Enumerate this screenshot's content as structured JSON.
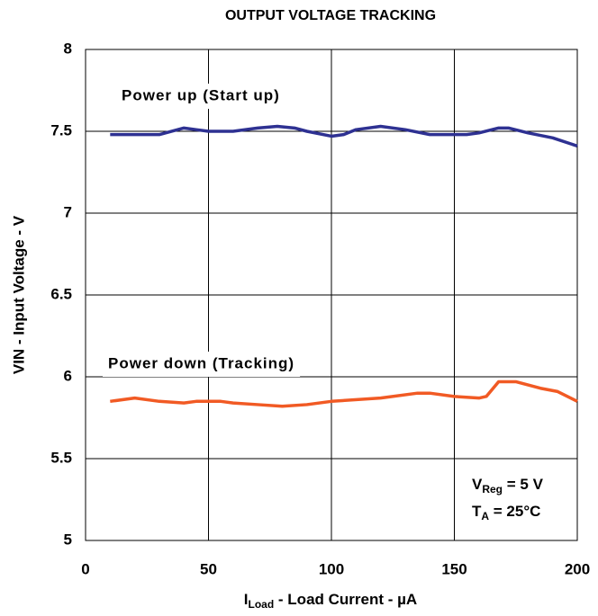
{
  "chart_data": {
    "type": "line",
    "title": "OUTPUT VOLTAGE TRACKING",
    "xlabel": {
      "main": "I",
      "sub": "Load",
      "rest": " - Load Current - µA"
    },
    "ylabel": "VIN - Input Voltage - V",
    "xlim": [
      0,
      200
    ],
    "xticks": [
      0,
      50,
      100,
      150,
      200
    ],
    "ylim": [
      5,
      8
    ],
    "yticks": [
      5,
      5.5,
      6,
      6.5,
      7,
      7.5,
      8
    ],
    "grid": true,
    "series": [
      {
        "name": "Power up (Start up)",
        "color": "#2e3192",
        "x": [
          10,
          20,
          30,
          40,
          45,
          50,
          60,
          70,
          78,
          85,
          90,
          100,
          105,
          110,
          120,
          130,
          140,
          150,
          155,
          160,
          168,
          172,
          180,
          190,
          200
        ],
        "values": [
          7.48,
          7.48,
          7.48,
          7.52,
          7.51,
          7.5,
          7.5,
          7.52,
          7.53,
          7.52,
          7.5,
          7.47,
          7.48,
          7.51,
          7.53,
          7.51,
          7.48,
          7.48,
          7.48,
          7.49,
          7.52,
          7.52,
          7.49,
          7.46,
          7.41
        ]
      },
      {
        "name": "Power down (Tracking)",
        "color": "#f15a24",
        "x": [
          10,
          20,
          30,
          40,
          45,
          55,
          60,
          70,
          80,
          90,
          100,
          120,
          135,
          140,
          150,
          160,
          163,
          168,
          175,
          185,
          192,
          200
        ],
        "values": [
          5.85,
          5.87,
          5.85,
          5.84,
          5.85,
          5.85,
          5.84,
          5.83,
          5.82,
          5.83,
          5.85,
          5.87,
          5.9,
          5.9,
          5.88,
          5.87,
          5.88,
          5.97,
          5.97,
          5.93,
          5.91,
          5.85
        ]
      }
    ],
    "annotations": [
      {
        "main": "V",
        "sub": "Reg",
        "rest": " = 5 V"
      },
      {
        "main": "T",
        "sub": "A",
        "rest": " = 25°C"
      }
    ]
  }
}
